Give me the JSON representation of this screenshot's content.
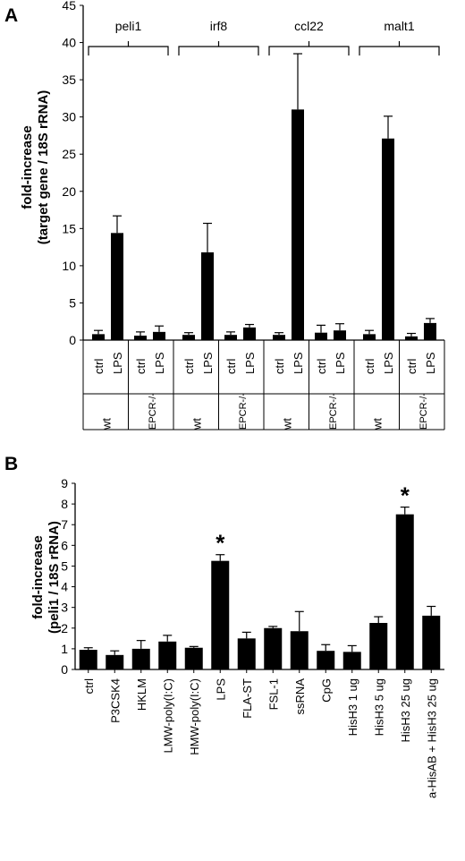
{
  "chart_data": [
    {
      "panel": "A",
      "type": "bar",
      "ylabel_line1": "fold-increase",
      "ylabel_line2": "(target gene / 18S rRNA)",
      "ylim": [
        0,
        45
      ],
      "yticks": [
        0,
        5,
        10,
        15,
        20,
        25,
        30,
        35,
        40,
        45
      ],
      "genes": [
        {
          "name": "peli1",
          "groups": [
            {
              "label": "wt",
              "bars": [
                {
                  "label": "ctrl",
                  "value": 0.8,
                  "err": 0.5
                },
                {
                  "label": "LPS",
                  "value": 14.4,
                  "err": 2.3
                }
              ]
            },
            {
              "label": "EPCR-/-",
              "bars": [
                {
                  "label": "ctrl",
                  "value": 0.6,
                  "err": 0.5
                },
                {
                  "label": "LPS",
                  "value": 1.1,
                  "err": 0.8
                }
              ]
            }
          ]
        },
        {
          "name": "irf8",
          "groups": [
            {
              "label": "wt",
              "bars": [
                {
                  "label": "ctrl",
                  "value": 0.7,
                  "err": 0.3
                },
                {
                  "label": "LPS",
                  "value": 11.8,
                  "err": 3.9
                }
              ]
            },
            {
              "label": "EPCR-/-",
              "bars": [
                {
                  "label": "ctrl",
                  "value": 0.7,
                  "err": 0.4
                },
                {
                  "label": "LPS",
                  "value": 1.7,
                  "err": 0.4
                }
              ]
            }
          ]
        },
        {
          "name": "ccl22",
          "groups": [
            {
              "label": "wt",
              "bars": [
                {
                  "label": "ctrl",
                  "value": 0.7,
                  "err": 0.3
                },
                {
                  "label": "LPS",
                  "value": 31.0,
                  "err": 7.5
                }
              ]
            },
            {
              "label": "EPCR-/-",
              "bars": [
                {
                  "label": "ctrl",
                  "value": 1.0,
                  "err": 1.0
                },
                {
                  "label": "LPS",
                  "value": 1.3,
                  "err": 0.9
                }
              ]
            }
          ]
        },
        {
          "name": "malt1",
          "groups": [
            {
              "label": "wt",
              "bars": [
                {
                  "label": "ctrl",
                  "value": 0.8,
                  "err": 0.5
                },
                {
                  "label": "LPS",
                  "value": 27.1,
                  "err": 3.0
                }
              ]
            },
            {
              "label": "EPCR-/-",
              "bars": [
                {
                  "label": "ctrl",
                  "value": 0.5,
                  "err": 0.4
                },
                {
                  "label": "LPS",
                  "value": 2.3,
                  "err": 0.6
                }
              ]
            }
          ]
        }
      ]
    },
    {
      "panel": "B",
      "type": "bar",
      "ylabel_line1": "fold-increase",
      "ylabel_line2": "(peli1 / 18S rRNA)",
      "ylim": [
        0,
        9
      ],
      "yticks": [
        0,
        1,
        2,
        3,
        4,
        5,
        6,
        7,
        8,
        9
      ],
      "categories": [
        "ctrl",
        "P3CSK4",
        "HKLM",
        "LMW-poly(I:C)",
        "HMW-poly(I:C)",
        "LPS",
        "FLA-ST",
        "FSL-1",
        "ssRNA",
        "CpG",
        "HisH3 1 ug",
        "HisH3 5 ug",
        "HisH3 25 ug",
        "a-HisAB + HisH3 25 ug"
      ],
      "values": [
        0.95,
        0.7,
        1.0,
        1.35,
        1.05,
        5.25,
        1.5,
        2.0,
        1.85,
        0.9,
        0.85,
        2.25,
        7.5,
        2.6
      ],
      "errors": [
        0.1,
        0.2,
        0.4,
        0.3,
        0.06,
        0.3,
        0.3,
        0.08,
        0.95,
        0.3,
        0.3,
        0.3,
        0.35,
        0.45
      ],
      "significance": [
        "",
        "",
        "",
        "",
        "",
        "*",
        "",
        "",
        "",
        "",
        "",
        "",
        "*",
        ""
      ]
    }
  ]
}
